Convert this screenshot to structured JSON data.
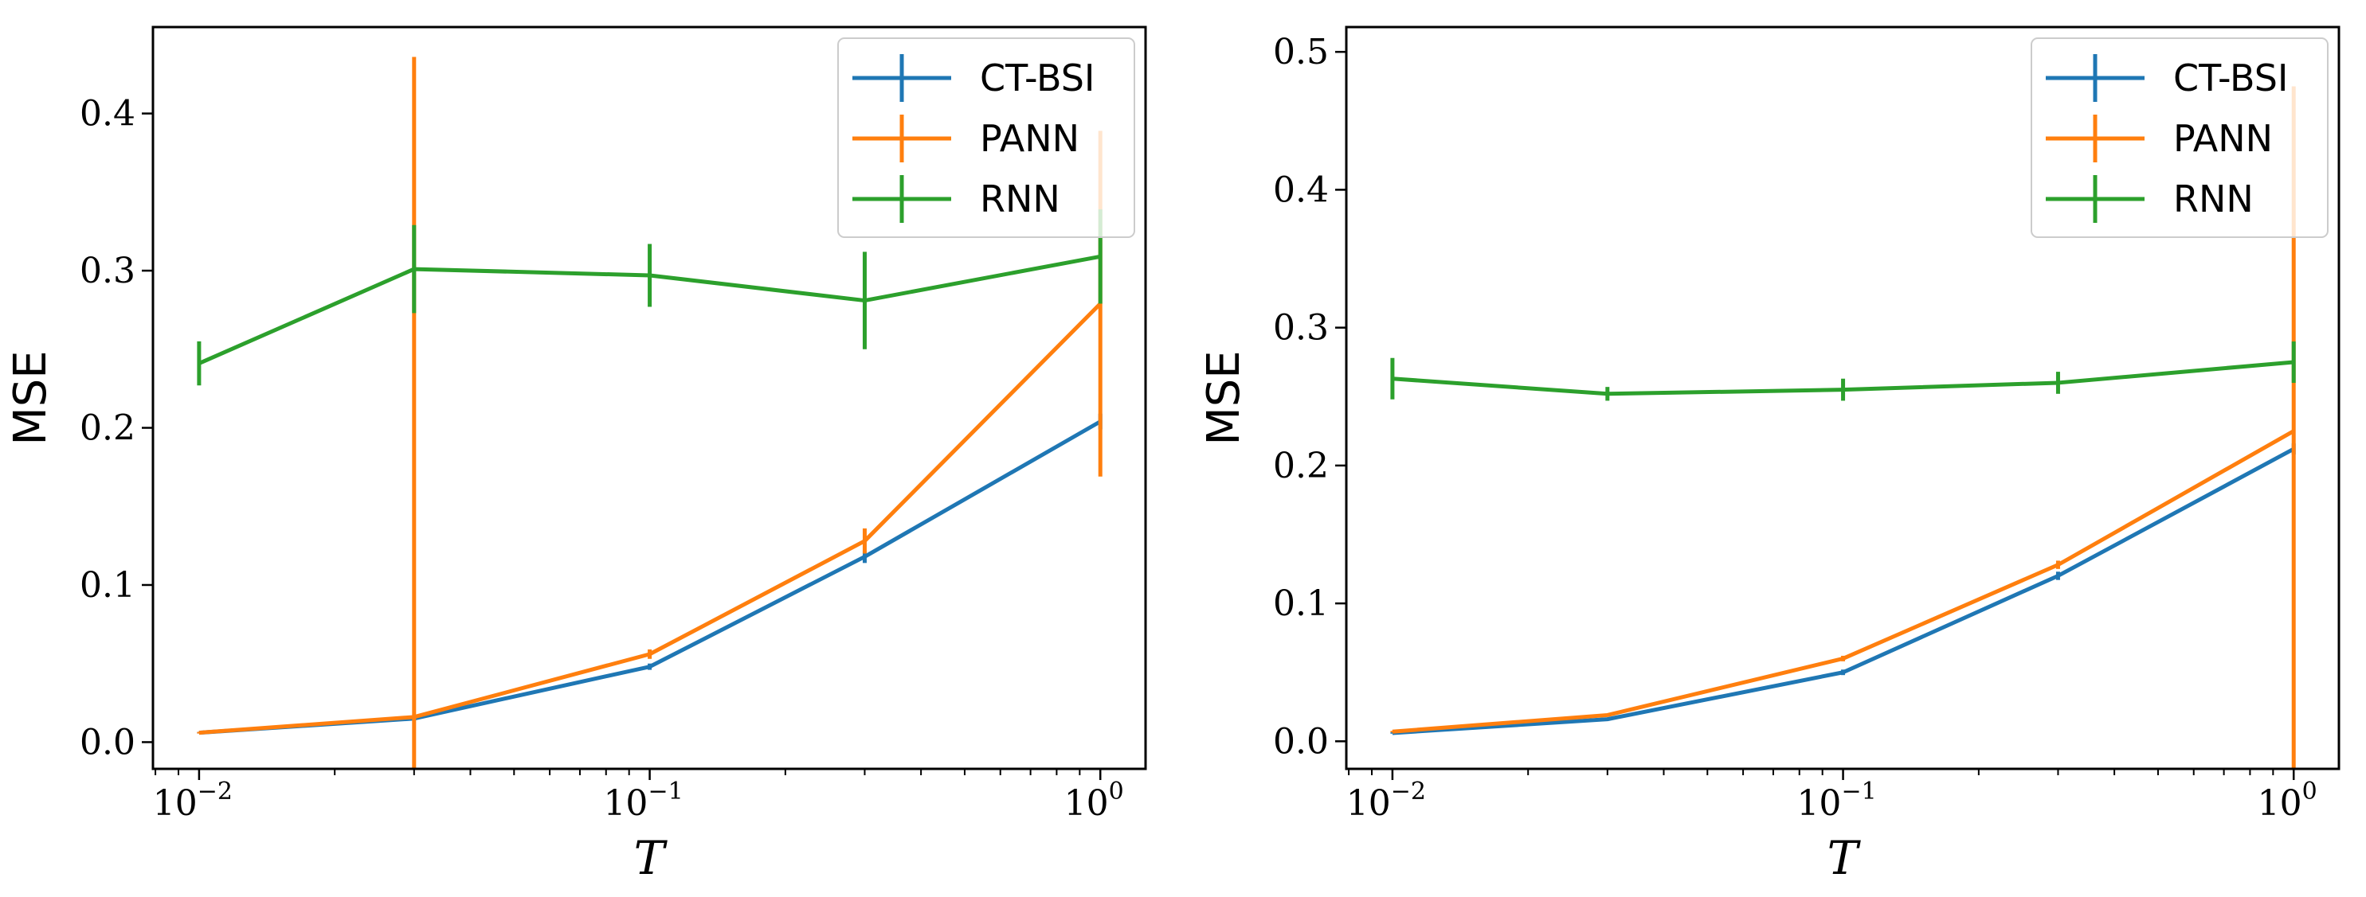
{
  "colors": {
    "CT-BSI": "#1f77b4",
    "PANN": "#ff7f0e",
    "RNN": "#2ca02c"
  },
  "chart_data": [
    {
      "type": "line",
      "xscale": "log",
      "x": [
        0.01,
        0.03,
        0.1,
        0.3,
        1.0
      ],
      "xlim": [
        0.0079,
        1.26
      ],
      "xticks": [
        "10^-2",
        "10^-1",
        "10^0"
      ],
      "ylim": [
        -0.017,
        0.455
      ],
      "yticks": [
        0.0,
        0.1,
        0.2,
        0.3,
        0.4
      ],
      "ytick_labels": [
        "0.0",
        "0.1",
        "0.2",
        "0.3",
        "0.4"
      ],
      "xlabel": "T",
      "ylabel": "MSE",
      "legend_position": "top-right",
      "series": [
        {
          "name": "CT-BSI",
          "values": [
            0.006,
            0.015,
            0.048,
            0.118,
            0.204
          ],
          "errors": [
            0.0005,
            0.001,
            0.002,
            0.004,
            0.005
          ]
        },
        {
          "name": "PANN",
          "values": [
            0.006,
            0.016,
            0.056,
            0.128,
            0.279
          ],
          "errors": [
            0.0005,
            0.42,
            0.003,
            0.008,
            0.11
          ]
        },
        {
          "name": "RNN",
          "values": [
            0.241,
            0.301,
            0.297,
            0.281,
            0.309
          ],
          "errors": [
            0.014,
            0.028,
            0.02,
            0.031,
            0.03
          ]
        }
      ]
    },
    {
      "type": "line",
      "xscale": "log",
      "x": [
        0.01,
        0.03,
        0.1,
        0.3,
        1.0
      ],
      "xlim": [
        0.0079,
        1.26
      ],
      "xticks": [
        "10^-2",
        "10^-1",
        "10^0"
      ],
      "ylim": [
        -0.02,
        0.518
      ],
      "yticks": [
        0.0,
        0.1,
        0.2,
        0.3,
        0.4,
        0.5
      ],
      "ytick_labels": [
        "0.0",
        "0.1",
        "0.2",
        "0.3",
        "0.4",
        "0.5"
      ],
      "xlabel": "T",
      "ylabel": "MSE",
      "legend_position": "top-right",
      "series": [
        {
          "name": "CT-BSI",
          "values": [
            0.006,
            0.016,
            0.05,
            0.12,
            0.212
          ],
          "errors": [
            0.0005,
            0.001,
            0.002,
            0.003,
            0.004
          ]
        },
        {
          "name": "PANN",
          "values": [
            0.007,
            0.019,
            0.06,
            0.128,
            0.225
          ],
          "errors": [
            0.0005,
            0.001,
            0.002,
            0.003,
            0.25
          ]
        },
        {
          "name": "RNN",
          "values": [
            0.263,
            0.252,
            0.255,
            0.26,
            0.275
          ],
          "errors": [
            0.015,
            0.005,
            0.008,
            0.008,
            0.015
          ]
        }
      ]
    }
  ]
}
